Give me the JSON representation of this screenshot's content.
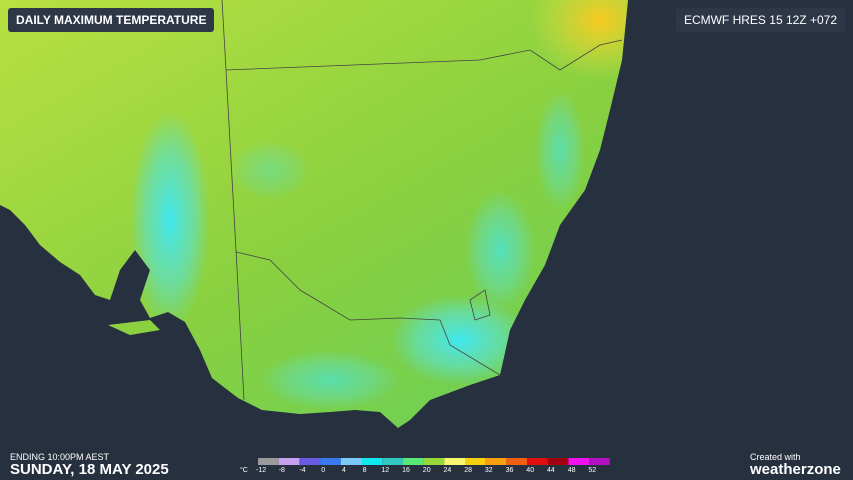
{
  "header": {
    "title": "DAILY MAXIMUM TEMPERATURE",
    "model": "ECMWF HRES 15 12Z +072"
  },
  "footer": {
    "ending": "ENDING 10:00PM AEST",
    "date": "SUNDAY, 18 MAY 2025",
    "credit": "Created with",
    "brand": "weatherzone"
  },
  "legend": {
    "unit": "°C",
    "ticks": [
      -12,
      -8,
      -4,
      0,
      4,
      8,
      12,
      16,
      20,
      24,
      28,
      32,
      36,
      40,
      44,
      48,
      52
    ],
    "colors": [
      "#9a9a9a",
      "#c8a0f0",
      "#6a5ae0",
      "#3a78f0",
      "#7ac8f8",
      "#10e8f0",
      "#30c8c0",
      "#58e878",
      "#98d838",
      "#f8f870",
      "#f8d010",
      "#f8a010",
      "#f06010",
      "#e01010",
      "#a00010",
      "#f010f0",
      "#b010c0"
    ]
  }
}
